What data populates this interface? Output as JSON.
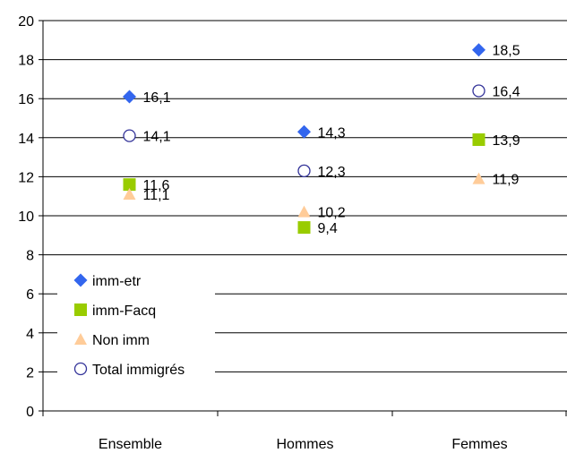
{
  "chart_data": {
    "type": "scatter",
    "categories": [
      "Ensemble",
      "Hommes",
      "Femmes"
    ],
    "ylim": [
      0,
      20
    ],
    "yticks": [
      0,
      2,
      4,
      6,
      8,
      10,
      12,
      14,
      16,
      18,
      20
    ],
    "grid": true,
    "legend_position": "bottom-left",
    "series": [
      {
        "name": "imm-etr",
        "marker": "diamond",
        "color": "#3366ee",
        "values": [
          16.1,
          14.3,
          18.5
        ],
        "labels": [
          "16,1",
          "14,3",
          "18,5"
        ]
      },
      {
        "name": "imm-Facq",
        "marker": "square",
        "color": "#99cc00",
        "values": [
          11.6,
          9.4,
          13.9
        ],
        "labels": [
          "11,6",
          "9,4",
          "13,9"
        ]
      },
      {
        "name": "Non imm",
        "marker": "triangle",
        "color": "#ffcc99",
        "values": [
          11.1,
          10.2,
          11.9
        ],
        "labels": [
          "11,1",
          "10,2",
          "11,9"
        ]
      },
      {
        "name": "Total immigrés",
        "marker": "circle",
        "color": "#333399",
        "values": [
          14.1,
          12.3,
          16.4
        ],
        "labels": [
          "14,1",
          "12,3",
          "16,4"
        ]
      }
    ]
  }
}
